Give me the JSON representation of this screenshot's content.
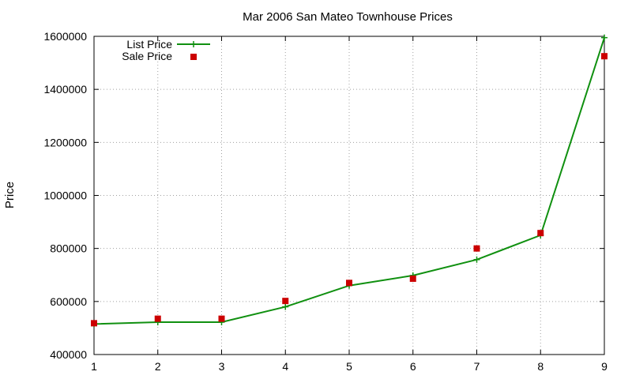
{
  "chart_data": {
    "type": "line",
    "title": "Mar 2006 San Mateo Townhouse Prices",
    "xlabel": "",
    "ylabel": "Price",
    "xlim": [
      1,
      9
    ],
    "ylim": [
      400000,
      1600000
    ],
    "x_ticks": [
      1,
      2,
      3,
      4,
      5,
      6,
      7,
      8,
      9
    ],
    "y_ticks": [
      400000,
      600000,
      800000,
      1000000,
      1200000,
      1400000,
      1600000
    ],
    "grid": true,
    "legend": "top-left",
    "x": [
      1,
      2,
      3,
      4,
      5,
      6,
      7,
      8,
      9
    ],
    "series": [
      {
        "name": "List Price",
        "style": "line+cross",
        "color": "#109010",
        "values": [
          515000,
          522000,
          522000,
          580000,
          660000,
          698000,
          758000,
          850000,
          1595000
        ]
      },
      {
        "name": "Sale Price",
        "style": "square-points",
        "color": "#cc0000",
        "values": [
          518000,
          535000,
          535000,
          602000,
          670000,
          686000,
          800000,
          858000,
          1525000
        ]
      }
    ]
  }
}
